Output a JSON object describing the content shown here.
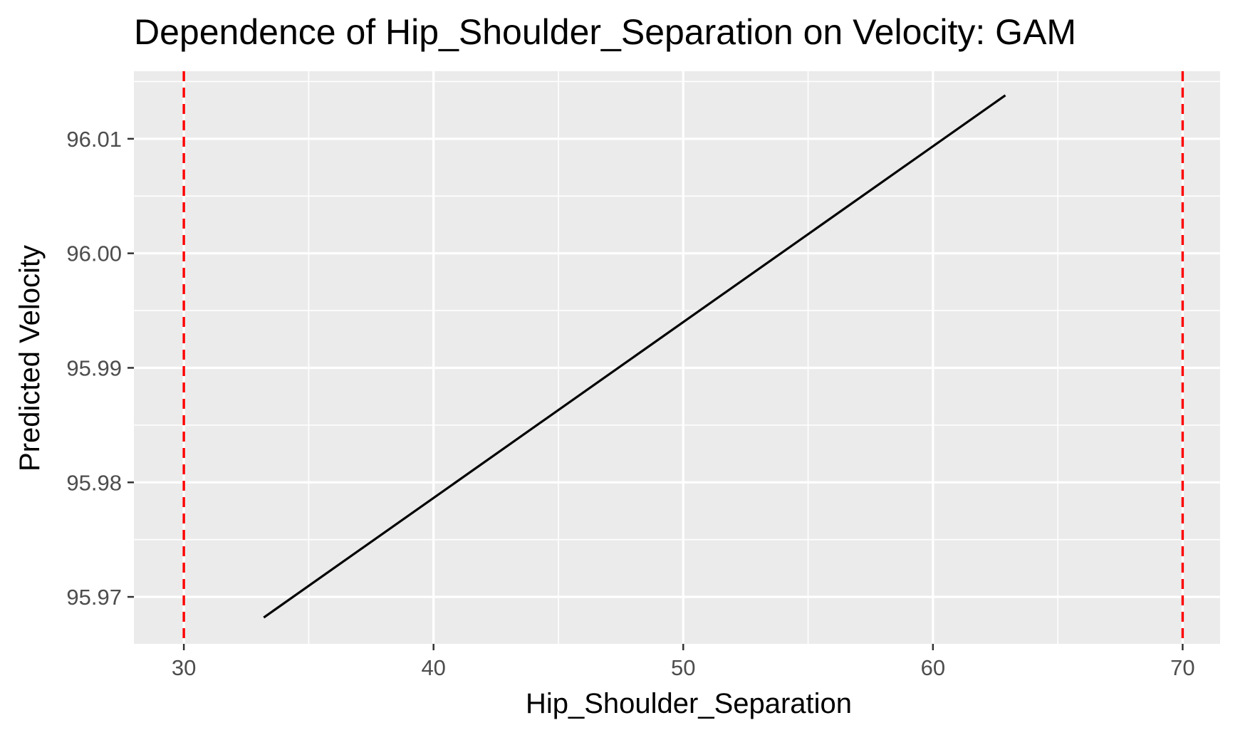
{
  "chart_data": {
    "type": "line",
    "title": "Dependence of Hip_Shoulder_Separation on Velocity: GAM",
    "xlabel": "Hip_Shoulder_Separation",
    "ylabel": "Predicted Velocity",
    "xlim": [
      28.0,
      71.5
    ],
    "ylim": [
      95.9659,
      96.0159
    ],
    "x_ticks": [
      30,
      40,
      50,
      60,
      70
    ],
    "x_tick_labels": [
      "30",
      "40",
      "50",
      "60",
      "70"
    ],
    "y_ticks": [
      95.97,
      95.98,
      95.99,
      96.0,
      96.01
    ],
    "y_tick_labels": [
      "95.97",
      "95.98",
      "95.99",
      "96.00",
      "96.01"
    ],
    "x_minor_ticks": [
      35,
      45,
      55,
      65
    ],
    "y_minor_ticks": [
      95.975,
      95.985,
      95.995,
      96.005,
      96.015
    ],
    "grid": true,
    "series": [
      {
        "values": [
          {
            "x": 33.2,
            "y": 95.9682
          },
          {
            "x": 62.9,
            "y": 96.0138
          }
        ]
      }
    ],
    "vlines": [
      {
        "x": 30
      },
      {
        "x": 70
      }
    ],
    "colors": {
      "panel": "#ebebeb",
      "grid": "#ffffff",
      "line": "#000000",
      "vline": "#ff0000",
      "tick_text": "#4d4d4d",
      "tick_mark": "#333333"
    }
  }
}
